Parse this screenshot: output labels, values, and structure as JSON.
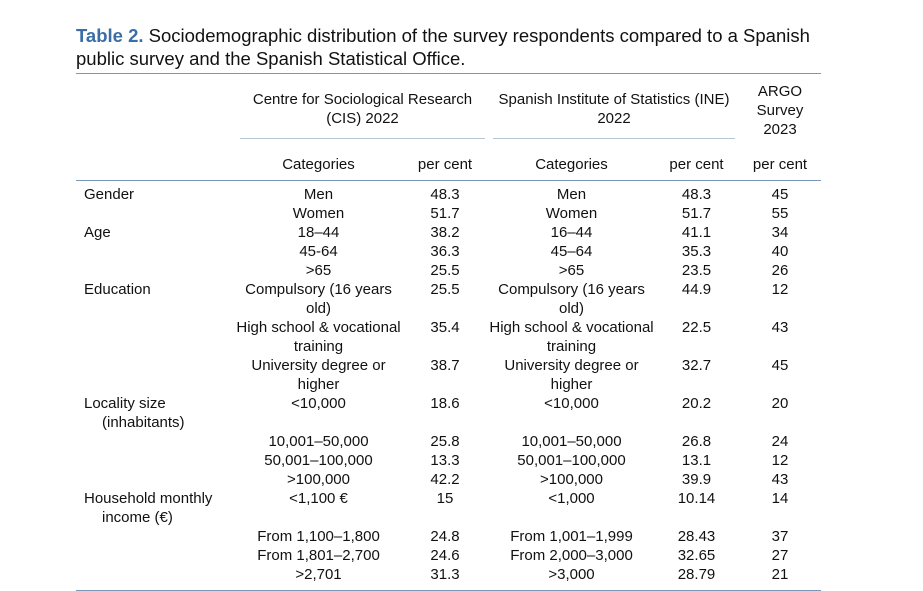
{
  "caption": {
    "label": "Table 2.",
    "text": "Sociodemographic distribution of the survey respondents compared to a Spanish public survey and the Spanish Statistical Office."
  },
  "header": {
    "cis": "Centre for Sociological Research (CIS) 2022",
    "ine": "Spanish Institute of Statistics (INE) 2022",
    "argo": "ARGO Survey 2023",
    "categories": "Categories",
    "per_cent": "per cent"
  },
  "rows": [
    {
      "var": "Gender",
      "cis_cat": "Men",
      "cis_pct": "48.3",
      "ine_cat": "Men",
      "ine_pct": "48.3",
      "argo": "45"
    },
    {
      "var": "",
      "cis_cat": "Women",
      "cis_pct": "51.7",
      "ine_cat": "Women",
      "ine_pct": "51.7",
      "argo": "55"
    },
    {
      "var": "Age",
      "cis_cat": "18–44",
      "cis_pct": "38.2",
      "ine_cat": "16–44",
      "ine_pct": "41.1",
      "argo": "34"
    },
    {
      "var": "",
      "cis_cat": "45-64",
      "cis_pct": "36.3",
      "ine_cat": "45–64",
      "ine_pct": "35.3",
      "argo": "40"
    },
    {
      "var": "",
      "cis_cat": ">65",
      "cis_pct": "25.5",
      "ine_cat": ">65",
      "ine_pct": "23.5",
      "argo": "26"
    },
    {
      "var": "Education",
      "cis_cat": "Compulsory (16 years old)",
      "cis_pct": "25.5",
      "ine_cat": "Compulsory (16 years old)",
      "ine_pct": "44.9",
      "argo": "12"
    },
    {
      "var": "",
      "cis_cat": "High school & vocational training",
      "cis_pct": "35.4",
      "ine_cat": "High school & vocational training",
      "ine_pct": "22.5",
      "argo": "43"
    },
    {
      "var": "",
      "cis_cat": "University degree or higher",
      "cis_pct": "38.7",
      "ine_cat": "University degree or higher",
      "ine_pct": "32.7",
      "argo": "45"
    },
    {
      "var": "Locality size",
      "var2": "(inhabitants)",
      "cis_cat": "<10,000",
      "cis_pct": "18.6",
      "ine_cat": "<10,000",
      "ine_pct": "20.2",
      "argo": "20"
    },
    {
      "var": "",
      "cis_cat": "10,001–50,000",
      "cis_pct": "25.8",
      "ine_cat": "10,001–50,000",
      "ine_pct": "26.8",
      "argo": "24"
    },
    {
      "var": "",
      "cis_cat": "50,001–100,000",
      "cis_pct": "13.3",
      "ine_cat": "50,001–100,000",
      "ine_pct": "13.1",
      "argo": "12"
    },
    {
      "var": "",
      "cis_cat": ">100,000",
      "cis_pct": "42.2",
      "ine_cat": ">100,000",
      "ine_pct": "39.9",
      "argo": "43"
    },
    {
      "var": "Household monthly",
      "var2": "income (€)",
      "cis_cat": "<1,100 €",
      "cis_pct": "15",
      "ine_cat": "<1,000",
      "ine_pct": "10.14",
      "argo": "14"
    },
    {
      "var": "",
      "cis_cat": "From 1,100–1,800",
      "cis_pct": "24.8",
      "ine_cat": "From 1,001–1,999",
      "ine_pct": "28.43",
      "argo": "37"
    },
    {
      "var": "",
      "cis_cat": "From 1,801–2,700",
      "cis_pct": "24.6",
      "ine_cat": "From 2,000–3,000",
      "ine_pct": "32.65",
      "argo": "27"
    },
    {
      "var": "",
      "cis_cat": ">2,701",
      "cis_pct": "31.3",
      "ine_cat": ">3,000",
      "ine_pct": "28.79",
      "argo": "21"
    }
  ]
}
